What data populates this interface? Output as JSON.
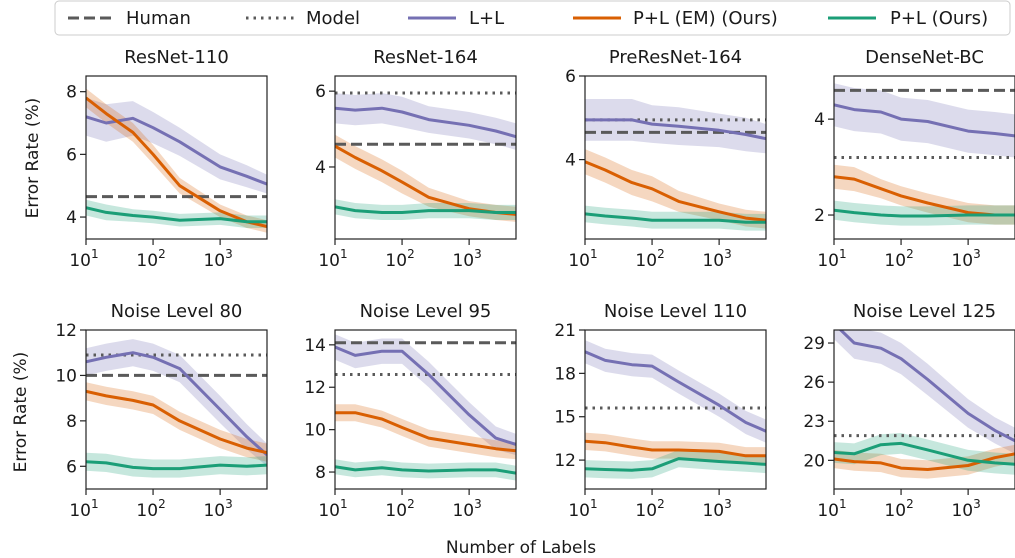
{
  "legend": [
    {
      "label": "Human",
      "style": "dashed",
      "color": "#5a5a5a"
    },
    {
      "label": "Model",
      "style": "dotted",
      "color": "#5a5a5a"
    },
    {
      "label": "L+L",
      "style": "solid",
      "color": "#7570b3"
    },
    {
      "label": "P+L (EM) (Ours)",
      "style": "solid",
      "color": "#d95f02"
    },
    {
      "label": "P+L (Ours)",
      "style": "solid",
      "color": "#1b9e77"
    }
  ],
  "xlabel": "Number of Labels",
  "ylabel": "Error Rate (%)",
  "chart_data": [
    {
      "type": "line",
      "title": "ResNet-110",
      "xscale": "log",
      "xlim": [
        10,
        5000
      ],
      "ylim": [
        3.3,
        8.5
      ],
      "yticks": [
        4,
        6,
        8
      ],
      "xticks": [
        "10^1",
        "10^2",
        "10^3"
      ],
      "human": 4.65,
      "model": null,
      "x": [
        10,
        20,
        50,
        100,
        250,
        1000,
        2500,
        5000
      ],
      "series": [
        {
          "name": "L+L",
          "values": [
            7.2,
            7.0,
            7.15,
            6.85,
            6.4,
            5.6,
            5.3,
            5.05
          ],
          "band": [
            0.6,
            0.6,
            0.55,
            0.5,
            0.45,
            0.4,
            0.35,
            0.3
          ]
        },
        {
          "name": "P+L (EM) (Ours)",
          "values": [
            7.8,
            7.3,
            6.7,
            6.0,
            5.0,
            4.2,
            3.85,
            3.7
          ],
          "band": [
            0.3,
            0.3,
            0.3,
            0.3,
            0.25,
            0.2,
            0.2,
            0.2
          ]
        },
        {
          "name": "P+L (Ours)",
          "values": [
            4.3,
            4.15,
            4.05,
            4.0,
            3.9,
            3.95,
            3.85,
            3.85
          ],
          "band": [
            0.25,
            0.25,
            0.2,
            0.2,
            0.2,
            0.2,
            0.2,
            0.2
          ]
        }
      ]
    },
    {
      "type": "line",
      "title": "ResNet-164",
      "xscale": "log",
      "xlim": [
        10,
        5000
      ],
      "ylim": [
        2.1,
        6.4
      ],
      "yticks": [
        4,
        6
      ],
      "xticks": [
        "10^1",
        "10^2",
        "10^3"
      ],
      "human": 4.6,
      "model": 5.95,
      "x": [
        10,
        20,
        50,
        100,
        250,
        1000,
        2500,
        5000
      ],
      "series": [
        {
          "name": "L+L",
          "values": [
            5.55,
            5.5,
            5.55,
            5.45,
            5.25,
            5.1,
            4.95,
            4.8
          ],
          "band": [
            0.4,
            0.4,
            0.4,
            0.4,
            0.35,
            0.35,
            0.35,
            0.35
          ]
        },
        {
          "name": "P+L (EM) (Ours)",
          "values": [
            4.55,
            4.25,
            3.9,
            3.6,
            3.2,
            2.9,
            2.8,
            2.75
          ],
          "band": [
            0.3,
            0.3,
            0.3,
            0.3,
            0.25,
            0.2,
            0.2,
            0.2
          ]
        },
        {
          "name": "P+L (Ours)",
          "values": [
            2.95,
            2.85,
            2.8,
            2.8,
            2.85,
            2.85,
            2.8,
            2.8
          ],
          "band": [
            0.2,
            0.2,
            0.2,
            0.2,
            0.2,
            0.2,
            0.2,
            0.2
          ]
        }
      ]
    },
    {
      "type": "line",
      "title": "PreResNet-164",
      "xscale": "log",
      "xlim": [
        10,
        5000
      ],
      "ylim": [
        2.1,
        6.0
      ],
      "yticks": [
        4,
        6
      ],
      "xticks": [
        "10^1",
        "10^2",
        "10^3"
      ],
      "human": 4.65,
      "model": 4.95,
      "x": [
        10,
        20,
        50,
        100,
        250,
        1000,
        2500,
        5000
      ],
      "series": [
        {
          "name": "L+L",
          "values": [
            4.95,
            4.95,
            4.95,
            4.85,
            4.8,
            4.7,
            4.6,
            4.5
          ],
          "band": [
            0.5,
            0.5,
            0.5,
            0.45,
            0.45,
            0.4,
            0.4,
            0.35
          ]
        },
        {
          "name": "P+L (EM) (Ours)",
          "values": [
            3.95,
            3.75,
            3.45,
            3.3,
            3.0,
            2.75,
            2.6,
            2.55
          ],
          "band": [
            0.3,
            0.3,
            0.3,
            0.3,
            0.25,
            0.2,
            0.2,
            0.2
          ]
        },
        {
          "name": "P+L (Ours)",
          "values": [
            2.7,
            2.65,
            2.6,
            2.55,
            2.55,
            2.55,
            2.5,
            2.5
          ],
          "band": [
            0.2,
            0.2,
            0.2,
            0.2,
            0.2,
            0.2,
            0.2,
            0.2
          ]
        }
      ]
    },
    {
      "type": "line",
      "title": "DenseNet-BC",
      "xscale": "log",
      "xlim": [
        10,
        5000
      ],
      "ylim": [
        1.5,
        4.9
      ],
      "yticks": [
        2,
        4
      ],
      "xticks": [
        "10^1",
        "10^2",
        "10^3"
      ],
      "human": 4.6,
      "model": 3.2,
      "x": [
        10,
        20,
        50,
        100,
        250,
        1000,
        2500,
        5000
      ],
      "series": [
        {
          "name": "L+L",
          "values": [
            4.3,
            4.2,
            4.15,
            4.0,
            3.95,
            3.75,
            3.7,
            3.65
          ],
          "band": [
            0.45,
            0.45,
            0.45,
            0.45,
            0.45,
            0.45,
            0.45,
            0.45
          ]
        },
        {
          "name": "P+L (EM) (Ours)",
          "values": [
            2.8,
            2.75,
            2.55,
            2.4,
            2.25,
            2.05,
            2.0,
            2.0
          ],
          "band": [
            0.25,
            0.25,
            0.2,
            0.2,
            0.2,
            0.2,
            0.2,
            0.2
          ]
        },
        {
          "name": "P+L (Ours)",
          "values": [
            2.1,
            2.05,
            2.0,
            1.98,
            1.98,
            2.0,
            2.0,
            2.0
          ],
          "band": [
            0.2,
            0.2,
            0.2,
            0.2,
            0.2,
            0.2,
            0.2,
            0.2
          ]
        }
      ]
    },
    {
      "type": "line",
      "title": "Noise Level 80",
      "xscale": "log",
      "xlim": [
        10,
        5000
      ],
      "ylim": [
        5.0,
        12.0
      ],
      "yticks": [
        6,
        8,
        10,
        12
      ],
      "xticks": [
        "10^1",
        "10^2",
        "10^3"
      ],
      "human": 10.0,
      "model": 10.9,
      "x": [
        10,
        20,
        50,
        100,
        250,
        1000,
        2500,
        5000
      ],
      "series": [
        {
          "name": "L+L",
          "values": [
            10.6,
            10.8,
            11.0,
            10.8,
            10.3,
            8.5,
            7.3,
            6.5
          ],
          "band": [
            0.6,
            0.6,
            0.6,
            0.6,
            0.6,
            0.6,
            0.55,
            0.5
          ]
        },
        {
          "name": "P+L (EM) (Ours)",
          "values": [
            9.3,
            9.1,
            8.9,
            8.7,
            8.0,
            7.2,
            6.8,
            6.6
          ],
          "band": [
            0.4,
            0.4,
            0.4,
            0.4,
            0.4,
            0.4,
            0.4,
            0.4
          ]
        },
        {
          "name": "P+L (Ours)",
          "values": [
            6.2,
            6.15,
            5.95,
            5.9,
            5.9,
            6.05,
            6.0,
            6.05
          ],
          "band": [
            0.4,
            0.4,
            0.4,
            0.4,
            0.4,
            0.4,
            0.4,
            0.4
          ]
        }
      ]
    },
    {
      "type": "line",
      "title": "Noise Level 95",
      "xscale": "log",
      "xlim": [
        10,
        5000
      ],
      "ylim": [
        7.2,
        14.7
      ],
      "yticks": [
        8,
        10,
        12,
        14
      ],
      "xticks": [
        "10^1",
        "10^2",
        "10^3"
      ],
      "human": 14.1,
      "model": 12.6,
      "x": [
        10,
        20,
        50,
        100,
        250,
        1000,
        2500,
        5000
      ],
      "series": [
        {
          "name": "L+L",
          "values": [
            13.9,
            13.5,
            13.7,
            13.7,
            12.6,
            10.7,
            9.6,
            9.3
          ],
          "band": [
            0.6,
            0.6,
            0.6,
            0.6,
            0.6,
            0.6,
            0.55,
            0.5
          ]
        },
        {
          "name": "P+L (EM) (Ours)",
          "values": [
            10.8,
            10.8,
            10.5,
            10.1,
            9.6,
            9.3,
            9.1,
            9.0
          ],
          "band": [
            0.4,
            0.4,
            0.4,
            0.4,
            0.4,
            0.4,
            0.4,
            0.4
          ]
        },
        {
          "name": "P+L (Ours)",
          "values": [
            8.25,
            8.1,
            8.2,
            8.1,
            8.05,
            8.1,
            8.1,
            7.95
          ],
          "band": [
            0.35,
            0.35,
            0.35,
            0.35,
            0.35,
            0.35,
            0.35,
            0.35
          ]
        }
      ]
    },
    {
      "type": "line",
      "title": "Noise Level 110",
      "xscale": "log",
      "xlim": [
        10,
        5000
      ],
      "ylim": [
        10.0,
        21.0
      ],
      "yticks": [
        12,
        15,
        18,
        21
      ],
      "xticks": [
        "10^1",
        "10^2",
        "10^3"
      ],
      "human": null,
      "model": 15.6,
      "x": [
        10,
        20,
        50,
        100,
        250,
        1000,
        2500,
        5000
      ],
      "series": [
        {
          "name": "L+L",
          "values": [
            19.5,
            18.9,
            18.6,
            18.5,
            17.4,
            15.8,
            14.6,
            14.0
          ],
          "band": [
            0.8,
            0.8,
            0.8,
            0.8,
            0.8,
            0.8,
            0.8,
            0.8
          ]
        },
        {
          "name": "P+L (EM) (Ours)",
          "values": [
            13.3,
            13.2,
            12.9,
            12.7,
            12.7,
            12.6,
            12.3,
            12.3
          ],
          "band": [
            0.6,
            0.6,
            0.6,
            0.6,
            0.6,
            0.6,
            0.6,
            0.6
          ]
        },
        {
          "name": "P+L (Ours)",
          "values": [
            11.4,
            11.35,
            11.3,
            11.4,
            12.1,
            11.9,
            11.8,
            11.7
          ],
          "band": [
            0.6,
            0.6,
            0.6,
            0.6,
            0.6,
            0.6,
            0.6,
            0.6
          ]
        }
      ]
    },
    {
      "type": "line",
      "title": "Noise Level 125",
      "xscale": "log",
      "xlim": [
        10,
        5000
      ],
      "ylim": [
        17.8,
        30.0
      ],
      "yticks": [
        20,
        23,
        26,
        29
      ],
      "xticks": [
        "10^1",
        "10^2",
        "10^3"
      ],
      "human": null,
      "model": 21.9,
      "x": [
        10,
        20,
        50,
        100,
        250,
        1000,
        2500,
        5000
      ],
      "series": [
        {
          "name": "L+L",
          "values": [
            30.5,
            29.0,
            28.6,
            27.8,
            26.2,
            23.6,
            22.3,
            21.5
          ],
          "band": [
            1.2,
            1.2,
            1.2,
            1.2,
            1.2,
            1.1,
            1.0,
            1.0
          ]
        },
        {
          "name": "P+L (EM) (Ours)",
          "values": [
            20.1,
            19.9,
            19.8,
            19.4,
            19.3,
            19.6,
            20.2,
            20.5
          ],
          "band": [
            0.7,
            0.7,
            0.7,
            0.7,
            0.7,
            0.7,
            0.7,
            0.7
          ]
        },
        {
          "name": "P+L (Ours)",
          "values": [
            20.6,
            20.5,
            21.2,
            21.3,
            20.8,
            20.0,
            19.8,
            19.7
          ],
          "band": [
            0.8,
            0.8,
            0.8,
            0.8,
            0.8,
            0.8,
            0.8,
            0.8
          ]
        }
      ]
    }
  ]
}
